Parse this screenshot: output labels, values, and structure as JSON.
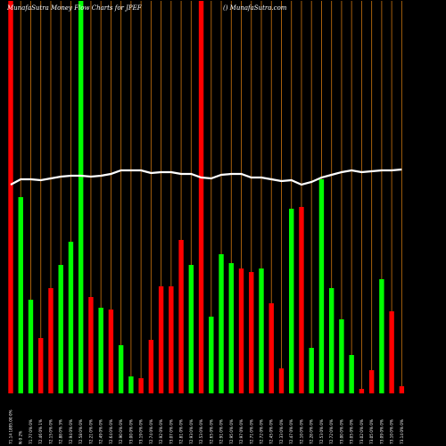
{
  "title_left": "MunafaSutra  Money Flow  Charts for JPEF",
  "title_right": "() MunafaSutra.com",
  "colors": {
    "background": "#000000",
    "grid": "#b86a0e",
    "up": "#00ff00",
    "down": "#ff0000",
    "line": "#ffffff"
  },
  "chart_data": {
    "type": "bar",
    "title": "MunafaSutra  Money Flow  Charts for JPEF",
    "ylim": [
      0,
      440
    ],
    "series": [
      {
        "values": [
          440,
          220,
          105,
          62,
          118,
          144,
          170,
          440,
          108,
          96,
          94,
          54,
          19,
          17,
          60,
          120,
          120,
          172,
          144,
          440,
          86,
          156,
          146,
          140,
          136,
          140,
          101,
          28,
          207,
          209,
          51,
          240,
          118,
          83,
          43,
          5,
          26,
          128,
          92,
          8
        ],
        "colors": [
          "red",
          "green",
          "green",
          "red",
          "red",
          "green",
          "green",
          "green",
          "red",
          "green",
          "red",
          "green",
          "green",
          "red",
          "red",
          "red",
          "red",
          "red",
          "green",
          "red",
          "green",
          "green",
          "green",
          "red",
          "red",
          "green",
          "red",
          "red",
          "green",
          "red",
          "green",
          "green",
          "green",
          "green",
          "green",
          "red",
          "red",
          "green",
          "red",
          "red"
        ]
      },
      {
        "values": [
          234,
          240,
          240,
          239,
          241,
          243,
          244,
          244,
          243,
          244,
          246,
          250,
          250,
          250,
          247,
          248,
          248,
          246,
          246,
          242,
          241,
          245,
          246,
          246,
          242,
          242,
          240,
          238,
          239,
          234,
          237,
          242,
          245,
          248,
          250,
          248,
          249,
          250,
          250,
          251
        ]
      }
    ],
    "categories": [
      "71.14 1895.00 0%",
      "N  0 2%",
      "71.77 0% 0%",
      "72.46 0% 1%",
      "72.15 0% 0%",
      "72.88 0% 3%",
      "72.94 0% 0%",
      "72.58 0% 0%",
      "72.21 0% 0%",
      "72.49 0% 0%",
      "72.64 0% 0%",
      "72.90 0% 0%",
      "73.00 0% 0%",
      "73.19 0% 0%",
      "72.74 0% 0%",
      "72.92 0% 0%",
      "73.07 0% 0%",
      "72.81 0% 0%",
      "72.93 0% 0%",
      "72.53 0% 0%",
      "72.65 0% 0%",
      "72.91 0% 0%",
      "72.95 0% 0%",
      "72.97 0% 0%",
      "72.71 0% 0%",
      "72.72 0% 0%",
      "72.45 0% 0%",
      "72.33 0% 0%",
      "72.47 0% 0%",
      "72.10 0% 0%",
      "72.28 0% 0%",
      "72.53 0% 0%",
      "72.72 0% 0%",
      "73.00 0% 0%",
      "73.05 0% 0%",
      "73.02 0% 0%",
      "73.05 0% 0%",
      "73.09 0% 0%",
      "73.10 0% 0%",
      "73.14 0% 0%"
    ]
  }
}
